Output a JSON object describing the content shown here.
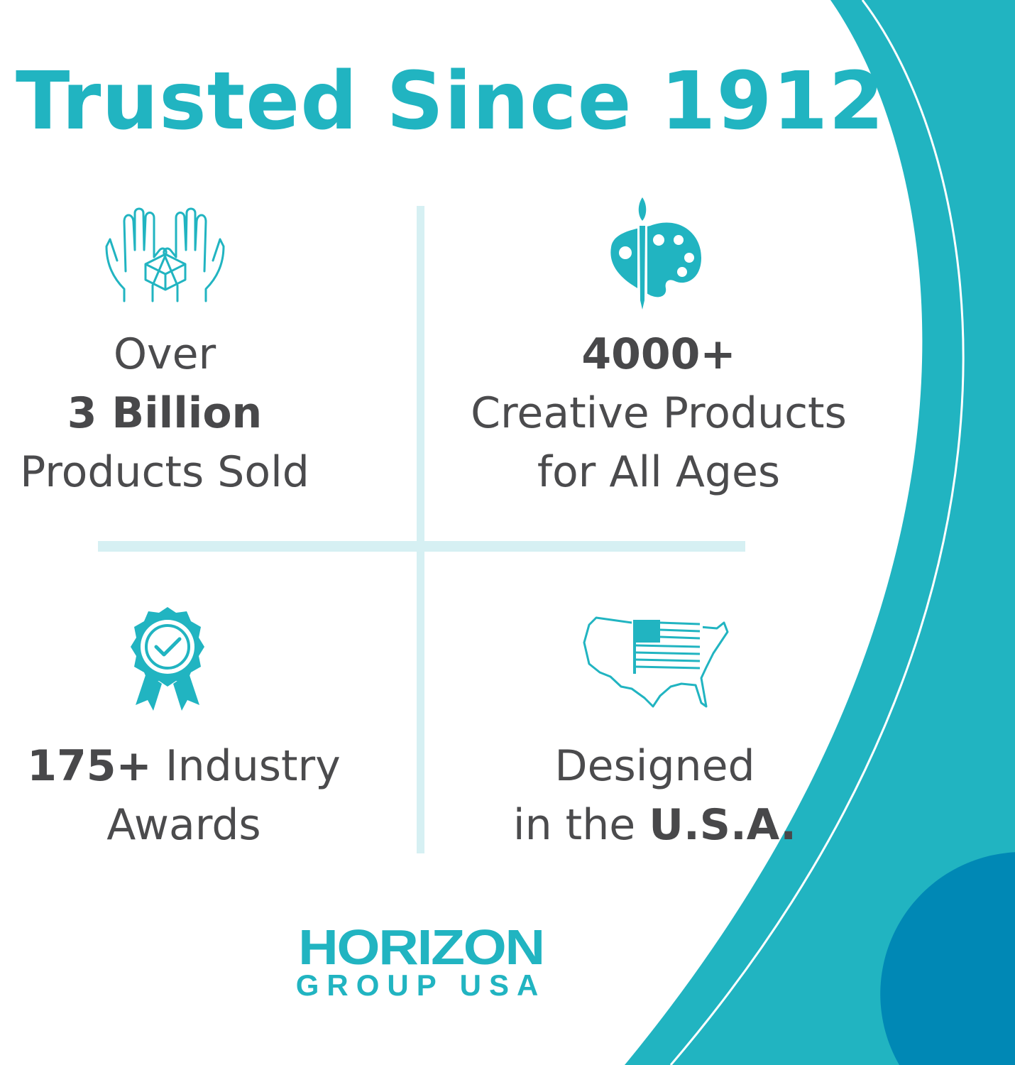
{
  "title": "Trusted Since 1912",
  "colors": {
    "accent": "#21b4c1",
    "dark_blue": "#0088b5",
    "divider": "#d6f0f3",
    "text": "#4b4b4d"
  },
  "quadrants": [
    {
      "icon": "hands-holding-box-icon",
      "line1": "Over",
      "line2_bold": "3 Billion",
      "line3": "Products Sold"
    },
    {
      "icon": "paint-palette-icon",
      "line1_bold": "4000+",
      "line2": "Creative Products",
      "line3": "for All Ages"
    },
    {
      "icon": "award-ribbon-icon",
      "line1_bold": "175+",
      "line1_rest": " Industry",
      "line2": "Awards"
    },
    {
      "icon": "usa-map-flag-icon",
      "line1": "Designed",
      "line2_pre": "in the ",
      "line2_bold": "U.S.A."
    }
  ],
  "logo": {
    "line1": "HORIZON",
    "line2": "GROUP USA"
  }
}
